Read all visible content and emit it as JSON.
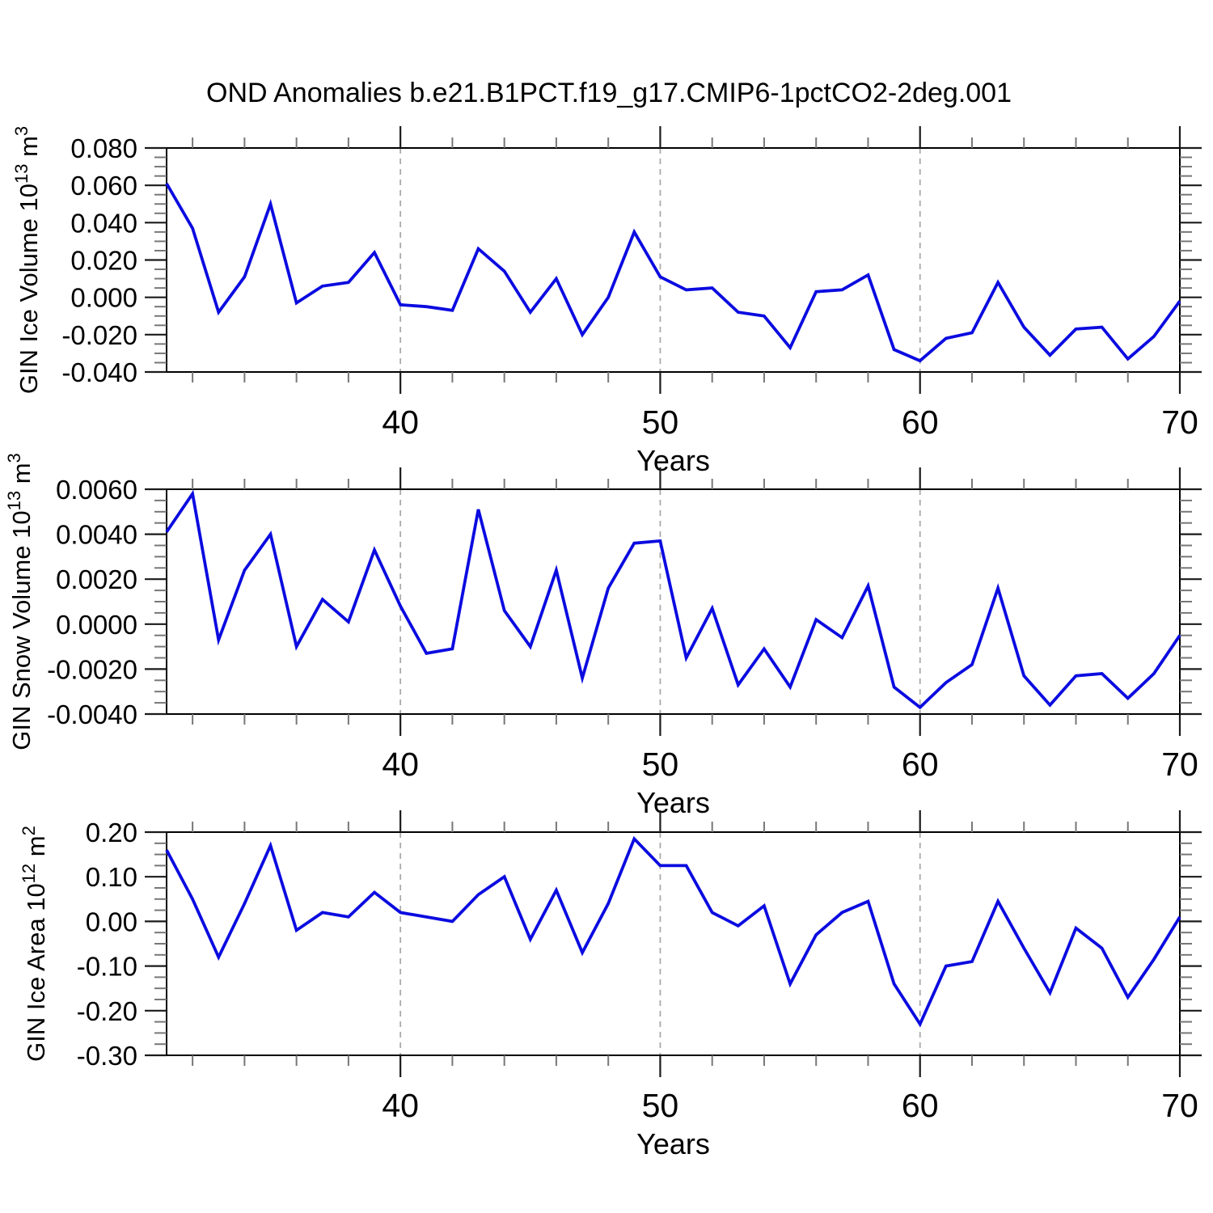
{
  "title": "OND Anomalies b.e21.B1PCT.f19_g17.CMIP6-1pctCO2-2deg.001",
  "style": {
    "line_color": "#0b0be0",
    "frame_color": "#000000",
    "major_tick_color": "#1a1a1a",
    "minor_tick_color": "#777777",
    "grid_color": "#aaaaaa",
    "text_color": "#000000",
    "background": "#ffffff"
  },
  "x_axis": {
    "label": "Years",
    "start_year": 31,
    "end_year": 70,
    "major_ticks": [
      40,
      50,
      60,
      70
    ],
    "major_tick_labels": [
      "40",
      "50",
      "60",
      "70"
    ],
    "minor_step_years": 2,
    "grid_years": [
      40,
      50,
      60
    ]
  },
  "chart_data": [
    {
      "type": "line",
      "name": "gin-ice-volume",
      "ylabel_parts": [
        {
          "t": "GIN Ice Volume 10"
        },
        {
          "t": "13",
          "sup": true
        },
        {
          "t": " m"
        },
        {
          "t": "3",
          "sup": true
        }
      ],
      "ylabel_plain": "GIN Ice Volume 10^13 m^3",
      "ylim": [
        -0.04,
        0.08
      ],
      "y_major_ticks": [
        0.08,
        0.06,
        0.04,
        0.02,
        0.0,
        -0.02,
        -0.04
      ],
      "y_tick_labels": [
        "0.080",
        "0.060",
        "0.040",
        "0.020",
        "0.000",
        "-0.020",
        "-0.040"
      ],
      "y_minor_step": 0.005,
      "x_start": 31,
      "values": [
        0.061,
        0.037,
        -0.008,
        0.011,
        0.05,
        -0.003,
        0.006,
        0.008,
        0.024,
        -0.004,
        -0.005,
        -0.007,
        0.026,
        0.014,
        -0.008,
        0.01,
        -0.02,
        0.0,
        0.035,
        0.011,
        0.004,
        0.005,
        -0.008,
        -0.01,
        -0.027,
        0.003,
        0.004,
        0.012,
        -0.028,
        -0.034,
        -0.022,
        -0.019,
        0.008,
        -0.016,
        -0.031,
        -0.017,
        -0.016,
        -0.033,
        -0.021,
        -0.002
      ]
    },
    {
      "type": "line",
      "name": "gin-snow-volume",
      "ylabel_parts": [
        {
          "t": "GIN Snow Volume 10"
        },
        {
          "t": "13",
          "sup": true
        },
        {
          "t": " m"
        },
        {
          "t": "3",
          "sup": true
        }
      ],
      "ylabel_plain": "GIN Snow Volume 10^13 m^3",
      "ylim": [
        -0.004,
        0.006
      ],
      "y_major_ticks": [
        0.006,
        0.004,
        0.002,
        0.0,
        -0.002,
        -0.004
      ],
      "y_tick_labels": [
        "0.0060",
        "0.0040",
        "0.0020",
        "0.0000",
        "-0.0020",
        "-0.0040"
      ],
      "y_minor_step": 0.0005,
      "x_start": 31,
      "values": [
        0.0041,
        0.0058,
        -0.0007,
        0.0024,
        0.004,
        -0.001,
        0.0011,
        0.0001,
        0.0033,
        0.0008,
        -0.0013,
        -0.0011,
        0.0051,
        0.0006,
        -0.001,
        0.0024,
        -0.0024,
        0.0016,
        0.0036,
        0.0037,
        -0.0015,
        0.0007,
        -0.0027,
        -0.0011,
        -0.0028,
        0.0002,
        -0.0006,
        0.0017,
        -0.0028,
        -0.0037,
        -0.0026,
        -0.0018,
        0.0016,
        -0.0023,
        -0.0036,
        -0.0023,
        -0.0022,
        -0.0033,
        -0.0022,
        -0.0005
      ]
    },
    {
      "type": "line",
      "name": "gin-ice-area",
      "ylabel_parts": [
        {
          "t": "GIN Ice Area 10"
        },
        {
          "t": "12",
          "sup": true
        },
        {
          "t": " m"
        },
        {
          "t": "2",
          "sup": true
        }
      ],
      "ylabel_plain": "GIN Ice Area 10^12 m^2",
      "ylim": [
        -0.3,
        0.2
      ],
      "y_major_ticks": [
        0.2,
        0.1,
        0.0,
        -0.1,
        -0.2,
        -0.3
      ],
      "y_tick_labels": [
        "0.20",
        "0.10",
        "0.00",
        "-0.10",
        "-0.20",
        "-0.30"
      ],
      "y_minor_step": 0.025,
      "x_start": 31,
      "values": [
        0.16,
        0.05,
        -0.08,
        0.04,
        0.17,
        -0.02,
        0.02,
        0.01,
        0.065,
        0.02,
        0.01,
        0.0,
        0.06,
        0.1,
        -0.04,
        0.07,
        -0.07,
        0.04,
        0.185,
        0.125,
        0.125,
        0.02,
        -0.01,
        0.035,
        -0.14,
        -0.03,
        0.02,
        0.045,
        -0.14,
        -0.23,
        -0.1,
        -0.09,
        0.045,
        -0.06,
        -0.16,
        -0.015,
        -0.06,
        -0.17,
        -0.085,
        0.01
      ]
    }
  ]
}
